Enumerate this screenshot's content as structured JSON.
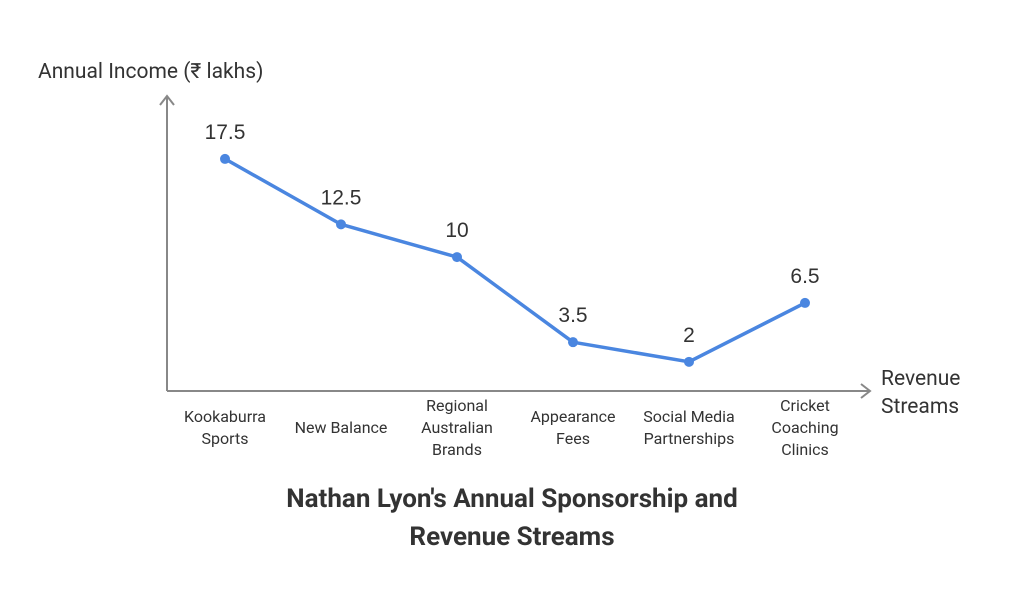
{
  "chart_data": {
    "type": "line",
    "title": "Nathan Lyon's Annual Sponsorship and Revenue Streams",
    "y_label": "Annual Income (₹ lakhs)",
    "x_label": "Revenue Streams",
    "categories": [
      "Kookaburra Sports",
      "New Balance",
      "Regional Australian Brands",
      "Appearance Fees",
      "Social Media Partnerships",
      "Cricket Coaching Clinics"
    ],
    "values": [
      17.5,
      12.5,
      10,
      3.5,
      2,
      6.5
    ],
    "color": "#4a86e0",
    "ylim": [
      0,
      22
    ]
  }
}
